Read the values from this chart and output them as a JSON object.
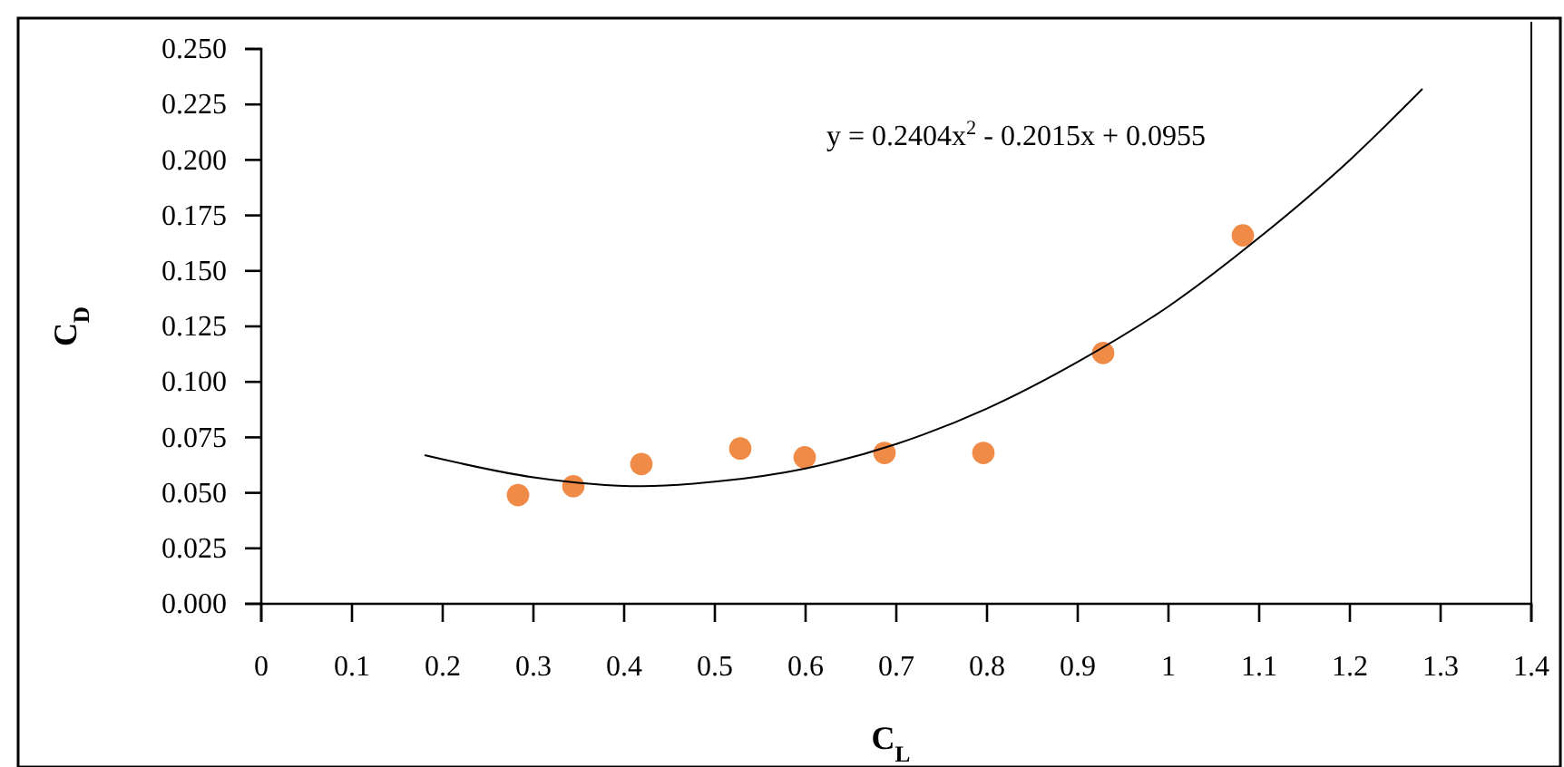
{
  "chart_data": {
    "type": "scatter",
    "xlabel": "C$_{L}$",
    "ylabel": "C$_{D}$",
    "annotations": [
      "y = 0.2404x$^{2}$ - 0.2015x + 0.0955"
    ],
    "xlim": [
      0,
      1.4
    ],
    "xticks": [
      0,
      0.1,
      0.2,
      0.3,
      0.4,
      0.5,
      0.6,
      0.7,
      0.8,
      0.9,
      1,
      1.1,
      1.2,
      1.3,
      1.4
    ],
    "ylim": [
      0,
      0.25
    ],
    "yticks": [
      {
        "value": 0,
        "label": "0.000"
      },
      {
        "value": 0.025,
        "label": "0.025"
      },
      {
        "value": 0.05,
        "label": "0.050"
      },
      {
        "value": 0.075,
        "label": "0.075"
      },
      {
        "value": 0.1,
        "label": "0.100"
      },
      {
        "value": 0.125,
        "label": "0.125"
      },
      {
        "value": 0.15,
        "label": "0.150"
      },
      {
        "value": 0.175,
        "label": "0.175"
      },
      {
        "value": 0.2,
        "label": "0.200"
      },
      {
        "value": 0.225,
        "label": "0.225"
      },
      {
        "value": 0.25,
        "label": "0.250"
      }
    ],
    "series": [
      {
        "marker": "circle",
        "color": "#f08b47",
        "x": [
          0.283,
          0.344,
          0.419,
          0.528,
          0.599,
          0.687,
          0.796,
          0.928,
          1.082
        ],
        "values": [
          0.049,
          0.053,
          0.063,
          0.07,
          0.066,
          0.068,
          0.068,
          0.113,
          0.166
        ]
      },
      {
        "type": "line",
        "marker": "none",
        "line_style": "solid",
        "color": "#000000",
        "x": [
          0.18,
          0.3,
          0.42,
          0.5,
          0.6,
          0.7,
          0.8,
          0.9,
          1.0,
          1.1,
          1.2,
          1.28
        ],
        "values": [
          0.067,
          0.057,
          0.053,
          0.055,
          0.061,
          0.072,
          0.088,
          0.109,
          0.134,
          0.165,
          0.2,
          0.232
        ]
      }
    ]
  }
}
